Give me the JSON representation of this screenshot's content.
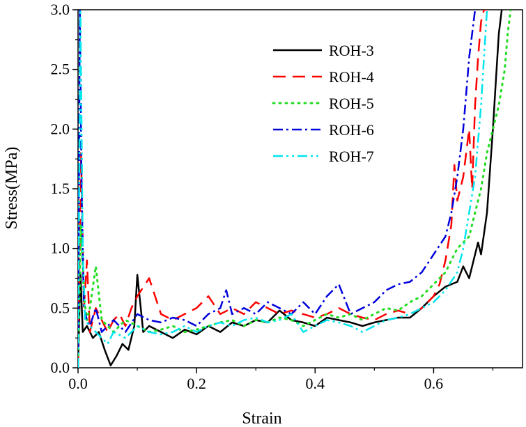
{
  "chart_data": {
    "type": "line",
    "title": "",
    "xlabel": "Strain",
    "ylabel": "Stress(MPa)",
    "xlim": [
      0.0,
      0.75
    ],
    "ylim": [
      0.0,
      3.0
    ],
    "x_ticks": [
      0.0,
      0.2,
      0.4,
      0.6
    ],
    "x_tick_labels": [
      "0.0",
      "0.2",
      "0.4",
      "0.6"
    ],
    "y_ticks": [
      0.0,
      0.5,
      1.0,
      1.5,
      2.0,
      2.5,
      3.0
    ],
    "y_tick_labels": [
      "0.0",
      "0.5",
      "1.0",
      "1.5",
      "2.0",
      "2.5",
      "3.0"
    ],
    "grid": false,
    "legend_position": "top-right",
    "series": [
      {
        "name": "ROH-3",
        "color": "#000000",
        "dash": "solid",
        "x": [
          0.0,
          0.004,
          0.008,
          0.015,
          0.025,
          0.035,
          0.045,
          0.055,
          0.065,
          0.075,
          0.085,
          0.095,
          0.1,
          0.11,
          0.12,
          0.14,
          0.16,
          0.18,
          0.2,
          0.22,
          0.24,
          0.26,
          0.28,
          0.3,
          0.32,
          0.34,
          0.36,
          0.38,
          0.4,
          0.42,
          0.44,
          0.46,
          0.48,
          0.5,
          0.52,
          0.54,
          0.56,
          0.58,
          0.6,
          0.62,
          0.64,
          0.65,
          0.66,
          0.67,
          0.675,
          0.68,
          0.69,
          0.7,
          0.705,
          0.71,
          0.715
        ],
        "y": [
          0.0,
          0.8,
          0.3,
          0.35,
          0.25,
          0.3,
          0.15,
          0.02,
          0.1,
          0.2,
          0.15,
          0.35,
          0.78,
          0.3,
          0.35,
          0.3,
          0.25,
          0.32,
          0.28,
          0.35,
          0.3,
          0.38,
          0.35,
          0.4,
          0.38,
          0.48,
          0.4,
          0.38,
          0.35,
          0.42,
          0.4,
          0.38,
          0.35,
          0.38,
          0.4,
          0.42,
          0.42,
          0.5,
          0.6,
          0.68,
          0.72,
          0.85,
          0.75,
          0.95,
          1.05,
          0.95,
          1.3,
          2.0,
          2.4,
          2.8,
          3.0
        ]
      },
      {
        "name": "ROH-4",
        "color": "#ff0000",
        "dash": "long-dash",
        "x": [
          0.0,
          0.005,
          0.01,
          0.015,
          0.02,
          0.03,
          0.04,
          0.05,
          0.06,
          0.07,
          0.08,
          0.09,
          0.1,
          0.12,
          0.14,
          0.16,
          0.18,
          0.2,
          0.22,
          0.24,
          0.26,
          0.28,
          0.3,
          0.32,
          0.34,
          0.36,
          0.38,
          0.4,
          0.42,
          0.44,
          0.46,
          0.48,
          0.5,
          0.52,
          0.54,
          0.56,
          0.58,
          0.6,
          0.61,
          0.62,
          0.63,
          0.635,
          0.64,
          0.65,
          0.66,
          0.665,
          0.67,
          0.675,
          0.68,
          0.685,
          0.69
        ],
        "y": [
          0.0,
          1.8,
          0.5,
          0.9,
          0.3,
          0.5,
          0.4,
          0.3,
          0.4,
          0.45,
          0.35,
          0.5,
          0.6,
          0.75,
          0.45,
          0.4,
          0.45,
          0.5,
          0.6,
          0.45,
          0.5,
          0.45,
          0.55,
          0.5,
          0.45,
          0.48,
          0.45,
          0.42,
          0.45,
          0.5,
          0.45,
          0.42,
          0.4,
          0.45,
          0.48,
          0.45,
          0.5,
          0.6,
          0.7,
          0.9,
          1.2,
          1.7,
          1.4,
          1.6,
          2.0,
          1.5,
          2.2,
          2.6,
          2.9,
          3.0,
          3.0
        ]
      },
      {
        "name": "ROH-5",
        "color": "#22dd22",
        "dash": "dotted",
        "x": [
          0.0,
          0.005,
          0.01,
          0.015,
          0.02,
          0.03,
          0.04,
          0.05,
          0.06,
          0.08,
          0.1,
          0.12,
          0.14,
          0.16,
          0.18,
          0.2,
          0.22,
          0.24,
          0.26,
          0.28,
          0.3,
          0.32,
          0.34,
          0.36,
          0.38,
          0.4,
          0.42,
          0.44,
          0.46,
          0.48,
          0.5,
          0.52,
          0.54,
          0.56,
          0.58,
          0.6,
          0.62,
          0.64,
          0.66,
          0.67,
          0.68,
          0.69,
          0.7,
          0.71,
          0.72,
          0.725,
          0.73
        ],
        "y": [
          0.0,
          1.2,
          0.6,
          0.4,
          0.5,
          0.85,
          0.4,
          0.35,
          0.3,
          0.4,
          0.35,
          0.3,
          0.32,
          0.35,
          0.3,
          0.32,
          0.35,
          0.38,
          0.4,
          0.35,
          0.4,
          0.38,
          0.42,
          0.4,
          0.35,
          0.4,
          0.45,
          0.42,
          0.45,
          0.4,
          0.45,
          0.5,
          0.48,
          0.55,
          0.6,
          0.7,
          0.8,
          1.0,
          1.1,
          1.3,
          1.5,
          1.8,
          2.0,
          2.2,
          2.5,
          2.8,
          3.0
        ]
      },
      {
        "name": "ROH-6",
        "color": "#0000dd",
        "dash": "dash-dot",
        "x": [
          0.0,
          0.003,
          0.006,
          0.01,
          0.015,
          0.02,
          0.03,
          0.04,
          0.05,
          0.06,
          0.08,
          0.1,
          0.12,
          0.14,
          0.16,
          0.18,
          0.2,
          0.22,
          0.24,
          0.25,
          0.26,
          0.28,
          0.3,
          0.32,
          0.34,
          0.36,
          0.38,
          0.4,
          0.42,
          0.44,
          0.46,
          0.48,
          0.5,
          0.52,
          0.54,
          0.56,
          0.58,
          0.6,
          0.62,
          0.63,
          0.64,
          0.65,
          0.655,
          0.66,
          0.665,
          0.67
        ],
        "y": [
          0.0,
          3.0,
          1.5,
          0.5,
          0.4,
          0.35,
          0.5,
          0.3,
          0.35,
          0.4,
          0.3,
          0.45,
          0.4,
          0.38,
          0.42,
          0.4,
          0.35,
          0.45,
          0.5,
          0.65,
          0.45,
          0.5,
          0.45,
          0.55,
          0.5,
          0.45,
          0.55,
          0.45,
          0.6,
          0.7,
          0.45,
          0.5,
          0.55,
          0.65,
          0.7,
          0.72,
          0.8,
          0.95,
          1.1,
          1.3,
          1.6,
          2.0,
          2.3,
          2.6,
          2.8,
          3.0
        ]
      },
      {
        "name": "ROH-7",
        "color": "#00e5ee",
        "dash": "dash-dot-dot",
        "x": [
          0.0,
          0.004,
          0.008,
          0.012,
          0.02,
          0.03,
          0.04,
          0.05,
          0.06,
          0.08,
          0.1,
          0.12,
          0.14,
          0.16,
          0.18,
          0.2,
          0.22,
          0.24,
          0.26,
          0.28,
          0.3,
          0.32,
          0.34,
          0.36,
          0.38,
          0.4,
          0.42,
          0.44,
          0.46,
          0.48,
          0.5,
          0.52,
          0.54,
          0.56,
          0.58,
          0.6,
          0.62,
          0.64,
          0.65,
          0.66,
          0.67,
          0.675,
          0.68,
          0.685,
          0.69
        ],
        "y": [
          0.0,
          3.0,
          1.0,
          0.4,
          0.35,
          0.3,
          0.25,
          0.2,
          0.3,
          0.25,
          0.35,
          0.3,
          0.28,
          0.3,
          0.35,
          0.3,
          0.35,
          0.38,
          0.35,
          0.4,
          0.42,
          0.38,
          0.4,
          0.45,
          0.3,
          0.35,
          0.4,
          0.38,
          0.35,
          0.3,
          0.35,
          0.4,
          0.42,
          0.45,
          0.5,
          0.55,
          0.65,
          0.8,
          1.0,
          1.3,
          1.6,
          1.9,
          2.2,
          2.6,
          3.0
        ]
      }
    ]
  }
}
